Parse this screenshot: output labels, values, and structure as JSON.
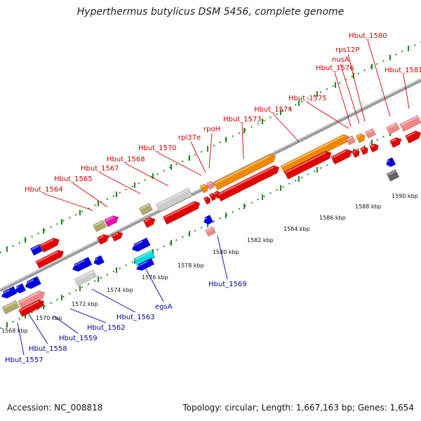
{
  "title": "Hyperthermus butylicus DSM 5456, complete genome",
  "footer": {
    "accession": "Accession: NC_008818",
    "topology": "Topology: circular; Length: 1,667,163 bp; Genes: 1,654"
  },
  "colors": {
    "forward_label": "#cc0000",
    "reverse_label": "#000099",
    "red_gene": "#e00000",
    "blue_gene": "#0000dd",
    "orange_gene": "#ee8800",
    "pink_gene": "#ee8888",
    "magenta_gene": "#ee11aa",
    "khaki_gene": "#b0a868",
    "cyan_gene": "#00dddd",
    "silver_gene": "#cccccc",
    "dark_gene": "#666666",
    "backbone": "#999999",
    "tick_green": "#228822"
  },
  "tick_labels": [
    "1568 kbp",
    "1570 kbp",
    "1572 kbp",
    "1574 kbp",
    "1576 kbp",
    "1578 kbp",
    "1580 kbp",
    "1582 kbp",
    "1584 kbp",
    "1586 kbp",
    "1588 kbp",
    "1590 kbp"
  ],
  "forward_labels": [
    "Hbut_1564",
    "Hbut_1565",
    "Hbut_1567",
    "Hbut_1568",
    "Hbut_1570",
    "rpl37e",
    "rpoH",
    "Hbut_1573",
    "Hbut_1574",
    "Hbut_1575",
    "Hbut_1576",
    "nusA",
    "rps12P",
    "Hbut_1580",
    "Hbut_1581"
  ],
  "reverse_labels": [
    "Hbut_1557",
    "Hbut_1558",
    "Hbut_1559",
    "Hbut_1562",
    "Hbut_1563",
    "egsA",
    "Hbut_1569"
  ]
}
